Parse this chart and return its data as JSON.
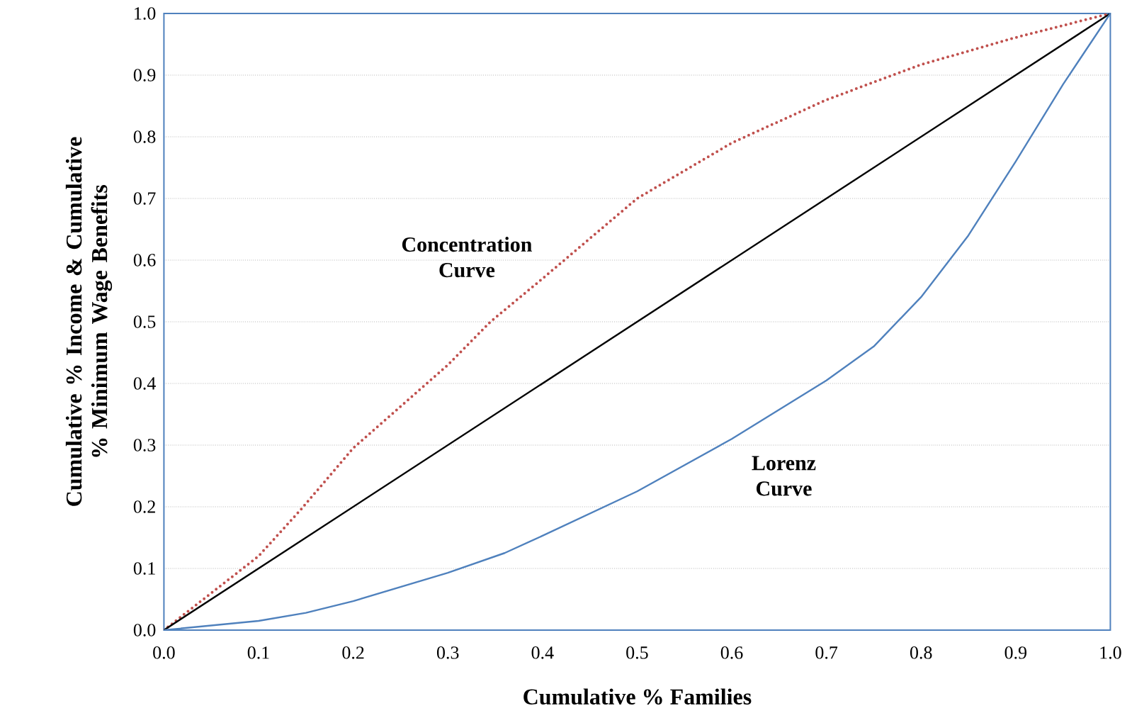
{
  "chart_data": {
    "type": "line",
    "xlabel": "Cumulative % Families",
    "ylabel": "Cumulative  % Income & Cumulative % Minimum Wage Benefits",
    "xlim": [
      0,
      1
    ],
    "ylim": [
      0,
      1
    ],
    "xticks": [
      {
        "value": 0,
        "label": "0.0"
      },
      {
        "value": 0.1,
        "label": "0.1"
      },
      {
        "value": 0.2,
        "label": "0.2"
      },
      {
        "value": 0.3,
        "label": "0.3"
      },
      {
        "value": 0.4,
        "label": "0.4"
      },
      {
        "value": 0.5,
        "label": "0.5"
      },
      {
        "value": 0.6,
        "label": "0.6"
      },
      {
        "value": 0.7,
        "label": "0.7"
      },
      {
        "value": 0.8,
        "label": "0.8"
      },
      {
        "value": 0.9,
        "label": "0.9"
      },
      {
        "value": 1,
        "label": "1.0"
      }
    ],
    "yticks": [
      {
        "value": 0,
        "label": "0.0"
      },
      {
        "value": 0.1,
        "label": "0.1"
      },
      {
        "value": 0.2,
        "label": "0.2"
      },
      {
        "value": 0.3,
        "label": "0.3"
      },
      {
        "value": 0.4,
        "label": "0.4"
      },
      {
        "value": 0.5,
        "label": "0.5"
      },
      {
        "value": 0.6,
        "label": "0.6"
      },
      {
        "value": 0.7,
        "label": "0.7"
      },
      {
        "value": 0.8,
        "label": "0.8"
      },
      {
        "value": 0.9,
        "label": "0.9"
      },
      {
        "value": 1,
        "label": "1.0"
      }
    ],
    "grid": "y",
    "marker": "none",
    "series": [
      {
        "name": "Concentration Curve",
        "color": "#c0504d",
        "line_style": "dotted",
        "x": [
          0,
          0.1,
          0.145,
          0.2,
          0.3,
          0.345,
          0.4,
          0.5,
          0.6,
          0.7,
          0.8,
          0.9,
          1
        ],
        "values": [
          0,
          0.12,
          0.196,
          0.295,
          0.43,
          0.5,
          0.57,
          0.7,
          0.79,
          0.86,
          0.917,
          0.961,
          1
        ]
      },
      {
        "color": "#000000",
        "line_style": "solid",
        "x": [
          0,
          1
        ],
        "values": [
          0,
          1
        ]
      },
      {
        "name": "Lorenz Curve",
        "color": "#4f81bd",
        "line_style": "solid",
        "x": [
          0,
          0.1,
          0.15,
          0.2,
          0.3,
          0.36,
          0.4,
          0.5,
          0.6,
          0.7,
          0.75,
          0.8,
          0.85,
          0.9,
          0.95,
          1
        ],
        "values": [
          0,
          0.015,
          0.028,
          0.047,
          0.093,
          0.125,
          0.153,
          0.225,
          0.31,
          0.405,
          0.46,
          0.54,
          0.64,
          0.76,
          0.885,
          1
        ]
      }
    ]
  }
}
